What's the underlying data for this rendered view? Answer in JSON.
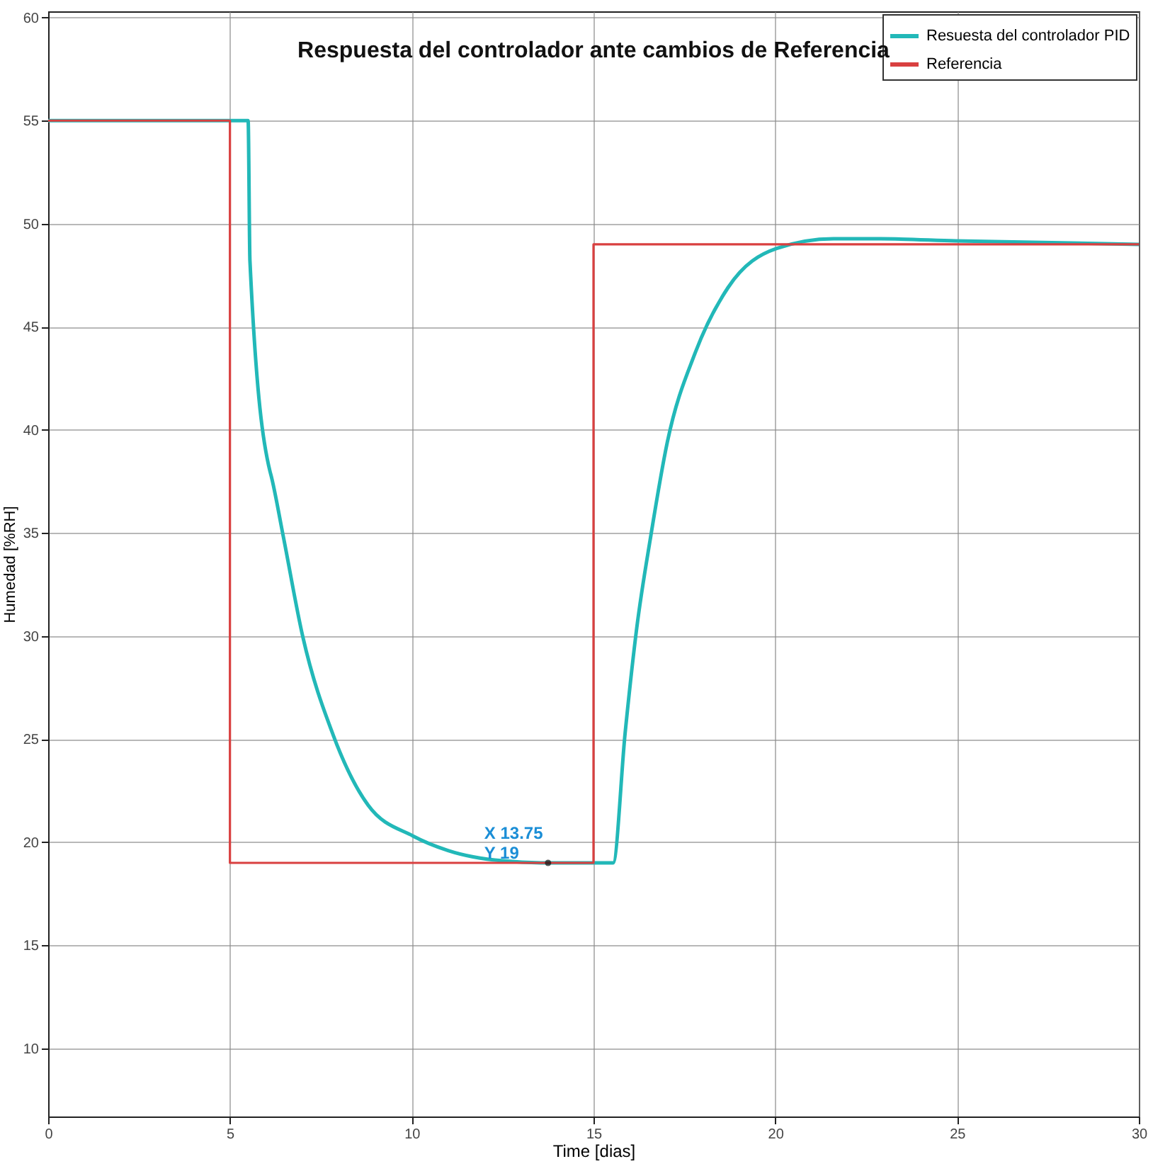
{
  "chart_data": {
    "type": "line",
    "title": "Respuesta del controlador ante cambios de Referencia",
    "xlabel": "Time [dias]",
    "ylabel": "Humedad [%RH]",
    "series": [
      {
        "name": "Resuesta del controlador PID",
        "color": "#22b8b8",
        "x": [
          0,
          5.5,
          5.55,
          6.1,
          6.13,
          6.46,
          7.0,
          7.84,
          8.8,
          10.04,
          11.0,
          12.5,
          13.75,
          15.54,
          15.87,
          16.19,
          16.58,
          17.03,
          17.8,
          18.7,
          20.04,
          21.6,
          22.9,
          24.96,
          30
        ],
        "values": [
          55,
          55,
          48.2,
          38.0,
          37.8,
          34.9,
          30.0,
          25.2,
          21.8,
          20.3,
          19.6,
          19.1,
          19,
          19,
          25.3,
          30.4,
          34.9,
          39.4,
          43.75,
          46.9,
          48.8,
          49.27,
          49.27,
          49.17,
          49.0
        ]
      },
      {
        "name": "Referencia",
        "type": "step",
        "color": "#d94040",
        "x": [
          0,
          5,
          15,
          30
        ],
        "values": [
          55,
          19,
          49,
          49
        ]
      }
    ],
    "xlim": [
      0,
      30
    ],
    "xticks": [
      0,
      5,
      10,
      15,
      20,
      25,
      30
    ],
    "ylim": [
      6.7,
      60.3
    ],
    "yticks": [
      10,
      15,
      20,
      25,
      30,
      35,
      40,
      45,
      50,
      55,
      60
    ],
    "grid": true,
    "legend": "top right",
    "annotations": [
      {
        "text": "X 13.75\nY 19",
        "x": 13.75,
        "y": 19
      }
    ]
  }
}
